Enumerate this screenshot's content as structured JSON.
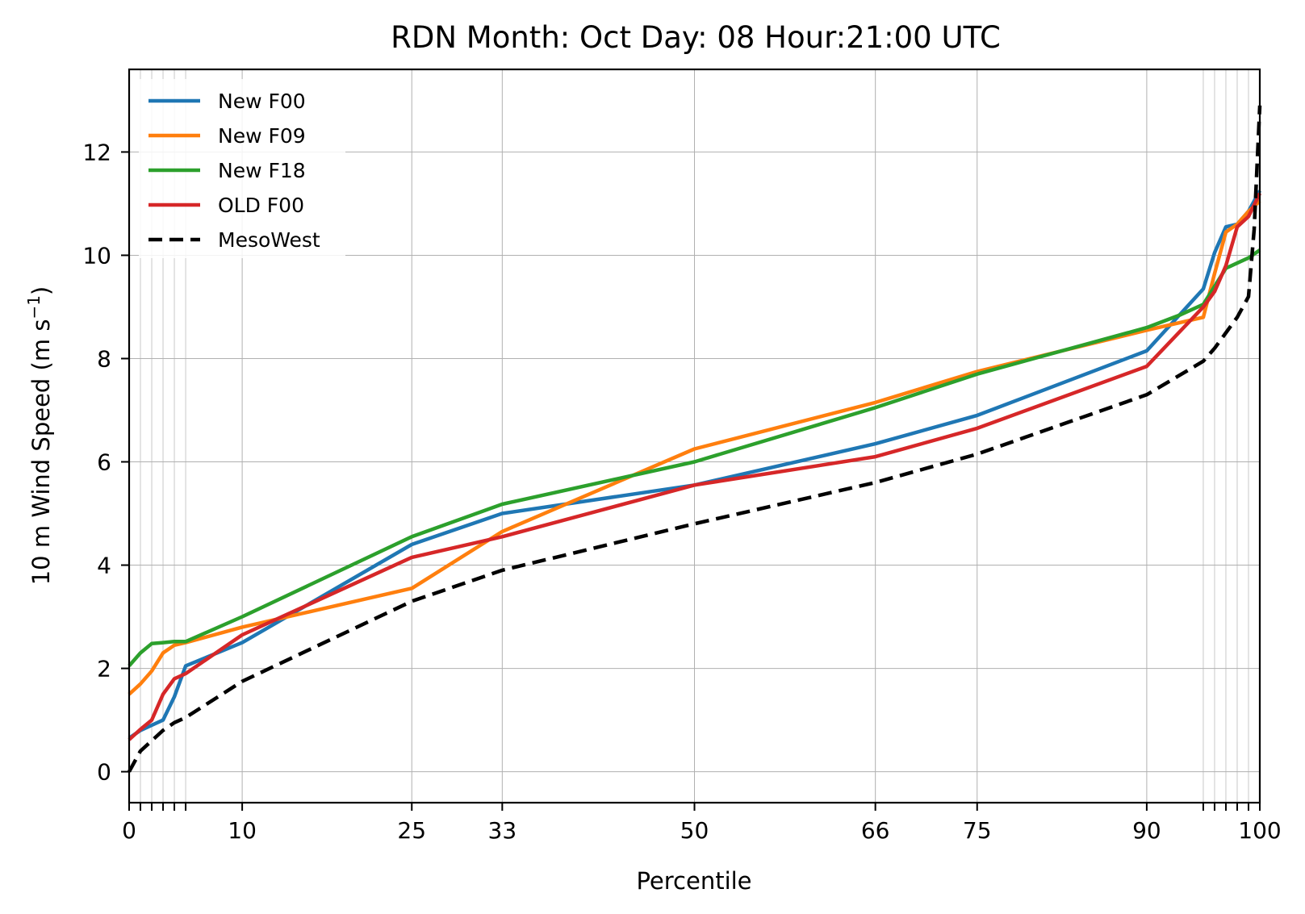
{
  "chart_data": {
    "type": "line",
    "title": "RDN Month: Oct  Day: 08  Hour:21:00 UTC",
    "xlabel": "Percentile",
    "ylabel": "10 m Wind Speed (m s",
    "ylabel_sup": "−1",
    "ylabel_suffix": ")",
    "xlim": [
      0,
      100
    ],
    "ylim": [
      -0.6,
      13.6
    ],
    "x_major_ticks": [
      0,
      10,
      25,
      33,
      50,
      66,
      75,
      90,
      100
    ],
    "x_minor_ticks": [
      1,
      2,
      3,
      4,
      5,
      95,
      96,
      97,
      98,
      99
    ],
    "y_ticks": [
      0,
      2,
      4,
      6,
      8,
      10,
      12
    ],
    "grid": true,
    "legend_position": "upper-left",
    "series": [
      {
        "name": "New F00",
        "color": "#1f77b4",
        "dashed": false,
        "x": [
          0,
          1,
          2,
          3,
          4,
          5,
          10,
          25,
          33,
          50,
          66,
          75,
          90,
          95,
          96,
          97,
          98,
          99,
          100
        ],
        "y": [
          0.65,
          0.8,
          0.9,
          1.0,
          1.45,
          2.05,
          2.5,
          4.4,
          5.0,
          5.55,
          6.35,
          6.9,
          8.15,
          9.35,
          10.05,
          10.55,
          10.6,
          10.85,
          11.25
        ]
      },
      {
        "name": "New F09",
        "color": "#ff7f0e",
        "dashed": false,
        "x": [
          0,
          1,
          2,
          3,
          4,
          5,
          10,
          25,
          33,
          50,
          66,
          75,
          90,
          95,
          96,
          97,
          98,
          99,
          100
        ],
        "y": [
          1.5,
          1.7,
          1.95,
          2.3,
          2.45,
          2.5,
          2.8,
          3.55,
          4.65,
          6.25,
          7.15,
          7.75,
          8.55,
          8.8,
          9.65,
          10.45,
          10.6,
          10.85,
          11.05
        ]
      },
      {
        "name": "New F18",
        "color": "#2ca02c",
        "dashed": false,
        "x": [
          0,
          1,
          2,
          3,
          4,
          5,
          10,
          25,
          33,
          50,
          66,
          75,
          90,
          93,
          95,
          96,
          97,
          98,
          99,
          100
        ],
        "y": [
          2.05,
          2.3,
          2.48,
          2.5,
          2.52,
          2.52,
          3.0,
          4.55,
          5.18,
          6.0,
          7.05,
          7.7,
          8.6,
          8.85,
          9.05,
          9.4,
          9.75,
          9.85,
          9.95,
          10.1
        ]
      },
      {
        "name": "OLD F00",
        "color": "#d62728",
        "dashed": false,
        "x": [
          0,
          1,
          2,
          3,
          4,
          5,
          10,
          25,
          33,
          50,
          66,
          75,
          90,
          95,
          96,
          97,
          98,
          99,
          100
        ],
        "y": [
          0.62,
          0.82,
          1.0,
          1.5,
          1.8,
          1.9,
          2.65,
          4.15,
          4.55,
          5.55,
          6.1,
          6.65,
          7.85,
          9.0,
          9.3,
          9.8,
          10.55,
          10.75,
          11.2
        ]
      },
      {
        "name": "MesoWest",
        "color": "#000000",
        "dashed": true,
        "x": [
          0,
          1,
          2,
          3,
          4,
          5,
          10,
          25,
          33,
          50,
          66,
          75,
          90,
          95,
          96,
          97,
          98,
          99,
          99.5,
          100
        ],
        "y": [
          0.0,
          0.4,
          0.6,
          0.8,
          0.95,
          1.05,
          1.75,
          3.3,
          3.9,
          4.8,
          5.6,
          6.15,
          7.3,
          7.95,
          8.2,
          8.5,
          8.8,
          9.2,
          10.5,
          12.9
        ]
      }
    ]
  }
}
